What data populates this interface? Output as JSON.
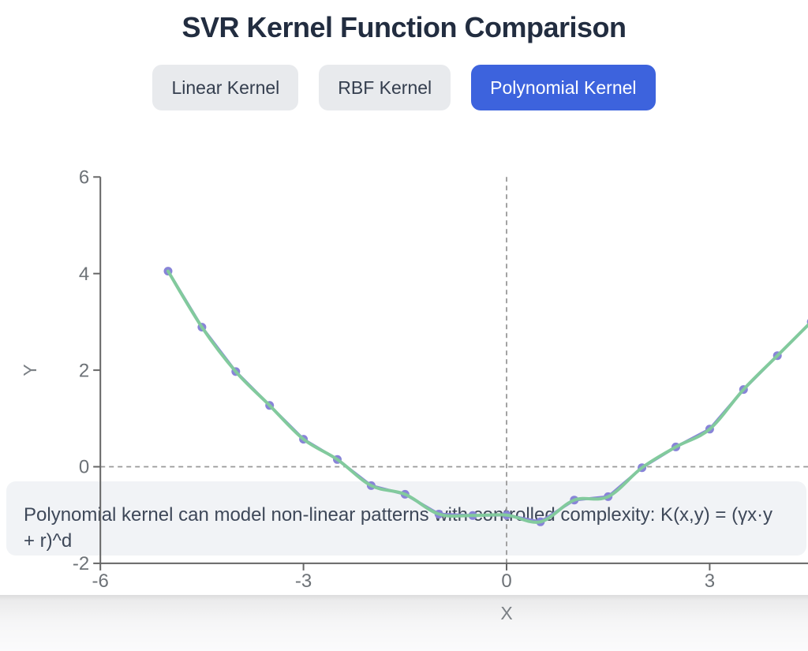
{
  "page": {
    "title": "SVR Kernel Function Comparison"
  },
  "tabs": {
    "items": [
      {
        "label": "Linear Kernel",
        "active": false
      },
      {
        "label": "RBF Kernel",
        "active": false
      },
      {
        "label": "Polynomial Kernel",
        "active": true
      }
    ]
  },
  "description": {
    "text": "Polynomial kernel can model non-linear patterns with controlled complexity: K(x,y) = (γx·y + r)^d"
  },
  "colors": {
    "accent_blue": "#3d63dd",
    "inactive_tab_bg": "#e8eaed",
    "inactive_tab_text": "#343e4e",
    "title_text": "#222d40",
    "description_bg": "#f1f3f6",
    "description_text": "#3e4859"
  },
  "chart_data": {
    "type": "line",
    "title": "",
    "xlabel": "X",
    "ylabel": "Y",
    "xlim": [
      -6,
      6
    ],
    "ylim": [
      -2,
      6
    ],
    "x_ticks": [
      -6,
      -3,
      0,
      3
    ],
    "y_ticks": [
      6,
      4,
      2,
      0,
      -2
    ],
    "grid": false,
    "legend": "none",
    "reference_lines": {
      "horizontal_y": 0,
      "vertical_x": 0,
      "style": "dashed"
    },
    "x": [
      -5,
      -4.5,
      -4,
      -3.5,
      -3,
      -2.5,
      -2,
      -1.5,
      -1,
      -0.5,
      0,
      0.5,
      1,
      1.5,
      2,
      2.5,
      3,
      3.5,
      4,
      4.5
    ],
    "y": [
      4.05,
      2.89,
      1.97,
      1.27,
      0.57,
      0.15,
      -0.39,
      -0.57,
      -0.98,
      -1.01,
      -1.0,
      -1.14,
      -0.69,
      -0.62,
      -0.02,
      0.41,
      0.78,
      1.6,
      2.3,
      3.0
    ],
    "series": [
      {
        "name": "purple-line-with-dots",
        "style": "linear",
        "dots": true,
        "color": "#8884d8"
      },
      {
        "name": "green-smooth-line",
        "style": "smooth",
        "dots": false,
        "color": "#82ca9d"
      }
    ],
    "colors": {
      "point_fill": "#8884d8",
      "smooth_line": "#82ca9d",
      "axis": "#666666",
      "tick_text": "#6d7277",
      "axis_label_text": "#7b8085",
      "reference_dash": "#999999"
    }
  }
}
